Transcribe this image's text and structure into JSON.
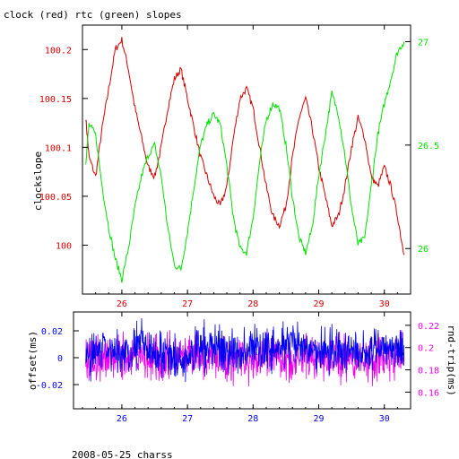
{
  "title": "clock (red) rtc (green) slopes",
  "footer": "2008-05-25 charss",
  "colors": {
    "axis": "#000000",
    "red": "#d40000",
    "green": "#00e000",
    "blue": "#0000ee",
    "magenta": "#ee00ee"
  },
  "chart_data": [
    {
      "type": "line",
      "title": "clock (red) rtc (green) slopes",
      "xlabel": "",
      "xlim": [
        25.4,
        30.4
      ],
      "xticks": [
        "26",
        "27",
        "28",
        "29",
        "30"
      ],
      "left_axis": {
        "label": "clockslope",
        "color": "#d40000",
        "ylim": [
          99.95,
          100.225
        ],
        "ticks": [
          "100",
          "100.05",
          "100.1",
          "100.15",
          "100.2"
        ]
      },
      "right_axis": {
        "label": "",
        "color": "#00e000",
        "ylim": [
          25.78,
          27.08
        ],
        "ticks": [
          "26",
          "26.5",
          "27"
        ]
      },
      "series": [
        {
          "name": "clock",
          "color": "#d40000",
          "axis": "left",
          "x": [
            25.45,
            25.5,
            25.6,
            25.7,
            25.8,
            25.9,
            26.0,
            26.1,
            26.2,
            26.3,
            26.4,
            26.5,
            26.6,
            26.7,
            26.8,
            26.9,
            27.0,
            27.1,
            27.2,
            27.3,
            27.4,
            27.5,
            27.6,
            27.7,
            27.8,
            27.9,
            28.0,
            28.1,
            28.2,
            28.3,
            28.4,
            28.5,
            28.6,
            28.7,
            28.8,
            28.9,
            29.0,
            29.1,
            29.2,
            29.3,
            29.4,
            29.5,
            29.6,
            29.7,
            29.8,
            29.9,
            30.0,
            30.1,
            30.2,
            30.3
          ],
          "y": [
            100.13,
            100.09,
            100.07,
            100.12,
            100.16,
            100.2,
            100.21,
            100.18,
            100.14,
            100.11,
            100.08,
            100.07,
            100.1,
            100.14,
            100.17,
            100.18,
            100.15,
            100.12,
            100.09,
            100.07,
            100.05,
            100.04,
            100.06,
            100.11,
            100.15,
            100.16,
            100.14,
            100.1,
            100.06,
            100.03,
            100.02,
            100.04,
            100.09,
            100.13,
            100.15,
            100.12,
            100.08,
            100.05,
            100.02,
            100.03,
            100.06,
            100.1,
            100.13,
            100.11,
            100.07,
            100.06,
            100.08,
            100.06,
            100.03,
            99.99
          ]
        },
        {
          "name": "rtc",
          "color": "#00e000",
          "axis": "right",
          "x": [
            25.45,
            25.5,
            25.6,
            25.7,
            25.8,
            25.9,
            26.0,
            26.1,
            26.2,
            26.3,
            26.4,
            26.5,
            26.6,
            26.7,
            26.8,
            26.9,
            27.0,
            27.1,
            27.2,
            27.3,
            27.4,
            27.5,
            27.6,
            27.7,
            27.8,
            27.9,
            28.0,
            28.1,
            28.2,
            28.3,
            28.4,
            28.5,
            28.6,
            28.7,
            28.8,
            28.9,
            29.0,
            29.1,
            29.2,
            29.3,
            29.4,
            29.5,
            29.6,
            29.7,
            29.8,
            29.9,
            30.0,
            30.1,
            30.2,
            30.3
          ],
          "y": [
            26.42,
            26.6,
            26.55,
            26.3,
            26.1,
            25.95,
            25.85,
            26.0,
            26.2,
            26.35,
            26.45,
            26.5,
            26.35,
            26.1,
            25.92,
            25.9,
            26.08,
            26.3,
            26.5,
            26.6,
            26.65,
            26.6,
            26.4,
            26.15,
            26.0,
            25.98,
            26.15,
            26.42,
            26.62,
            26.7,
            26.68,
            26.5,
            26.25,
            26.05,
            25.98,
            26.1,
            26.35,
            26.55,
            26.75,
            26.65,
            26.45,
            26.2,
            26.02,
            26.05,
            26.3,
            26.55,
            26.7,
            26.82,
            26.95,
            27.0
          ]
        }
      ]
    },
    {
      "type": "line",
      "title": "",
      "xlabel": "2008-05-25 charss",
      "xlim": [
        25.4,
        30.4
      ],
      "xticks": [
        "26",
        "27",
        "28",
        "29",
        "30"
      ],
      "left_axis": {
        "label": "offset(ms)",
        "color": "#0000ee",
        "ylim": [
          -0.038,
          0.034
        ],
        "ticks": [
          "-0.02",
          "0",
          "0.02"
        ]
      },
      "right_axis": {
        "label": "rnd-trip(ms)",
        "color": "#ee00ee",
        "ylim": [
          0.145,
          0.232
        ],
        "ticks": [
          "0.16",
          "0.18",
          "0.2",
          "0.22"
        ]
      },
      "series": [
        {
          "name": "offset",
          "color": "#0000ee",
          "axis": "left",
          "x_range": [
            25.45,
            30.3
          ],
          "level": [
            0.0,
            0.008,
            0.002,
            0.01,
            0.004,
            -0.005,
            0.006,
            0.009,
            0.003,
            0.008,
            0.006,
            0.01,
            0.004,
            0.007,
            0.005,
            0.003,
            0.009,
            0.004
          ],
          "noise": 0.01
        },
        {
          "name": "rnd-trip",
          "color": "#ee00ee",
          "axis": "right",
          "x_range": [
            25.45,
            30.3
          ],
          "level": [
            0.19,
            0.19,
            0.19,
            0.19,
            0.19,
            0.19,
            0.19,
            0.19,
            0.19
          ],
          "noise": 0.012
        }
      ]
    }
  ]
}
